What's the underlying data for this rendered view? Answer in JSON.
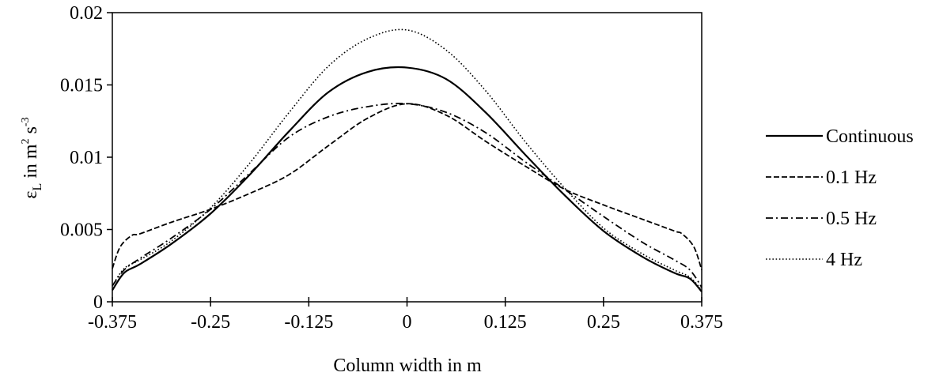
{
  "chart_data": {
    "type": "line",
    "title": "",
    "xlabel": "Column width in m",
    "ylabel": "εL in m² s⁻³",
    "ylabel_parts": {
      "symbol": "ε",
      "subscript": "L",
      "unit_prefix": " in m",
      "sup1": "2",
      "mid": " s",
      "sup2": "-3"
    },
    "xlim": [
      -0.375,
      0.375
    ],
    "ylim": [
      0,
      0.02
    ],
    "xticks": [
      -0.375,
      -0.25,
      -0.125,
      0,
      0.125,
      0.25,
      0.375
    ],
    "xtick_labels": [
      "-0.375",
      "-0.25",
      "-0.125",
      "0",
      "0.125",
      "0.25",
      "0.375"
    ],
    "yticks": [
      0,
      0.005,
      0.01,
      0.015,
      0.02
    ],
    "ytick_labels": [
      "0",
      "0.005",
      "0.01",
      "0.015",
      "0.02"
    ],
    "grid": false,
    "legend_position": "right",
    "series": [
      {
        "name": "Continuous",
        "style": "solid",
        "x": [
          -0.375,
          -0.36,
          -0.34,
          -0.3,
          -0.25,
          -0.2,
          -0.15,
          -0.1,
          -0.05,
          0,
          0.05,
          0.1,
          0.15,
          0.2,
          0.25,
          0.3,
          0.34,
          0.36,
          0.375
        ],
        "y": [
          0.0008,
          0.002,
          0.0026,
          0.004,
          0.0061,
          0.0088,
          0.0118,
          0.0145,
          0.0159,
          0.0162,
          0.0154,
          0.0131,
          0.0102,
          0.0074,
          0.0049,
          0.0031,
          0.002,
          0.0016,
          0.0007
        ]
      },
      {
        "name": "0.1 Hz",
        "style": "dashed",
        "x": [
          -0.375,
          -0.365,
          -0.35,
          -0.34,
          -0.3,
          -0.25,
          -0.2,
          -0.15,
          -0.1,
          -0.05,
          0,
          0.05,
          0.1,
          0.15,
          0.2,
          0.25,
          0.3,
          0.34,
          0.35,
          0.365,
          0.375
        ],
        "y": [
          0.0023,
          0.0038,
          0.0046,
          0.0047,
          0.0055,
          0.0064,
          0.0075,
          0.0088,
          0.0108,
          0.0127,
          0.0137,
          0.0129,
          0.0111,
          0.0094,
          0.0078,
          0.0067,
          0.0057,
          0.0049,
          0.0047,
          0.0038,
          0.0022
        ]
      },
      {
        "name": "0.5 Hz",
        "style": "dashdot",
        "x": [
          -0.375,
          -0.36,
          -0.34,
          -0.3,
          -0.25,
          -0.2,
          -0.15,
          -0.1,
          -0.05,
          0,
          0.05,
          0.1,
          0.15,
          0.2,
          0.25,
          0.3,
          0.34,
          0.36,
          0.375
        ],
        "y": [
          0.0011,
          0.0022,
          0.003,
          0.0044,
          0.0064,
          0.0089,
          0.0114,
          0.0128,
          0.0135,
          0.0137,
          0.0131,
          0.0117,
          0.0097,
          0.0078,
          0.0059,
          0.0041,
          0.0029,
          0.0022,
          0.001
        ]
      },
      {
        "name": "4 Hz",
        "style": "dotted",
        "x": [
          -0.375,
          -0.36,
          -0.34,
          -0.3,
          -0.25,
          -0.2,
          -0.15,
          -0.1,
          -0.05,
          0,
          0.05,
          0.1,
          0.15,
          0.2,
          0.25,
          0.3,
          0.34,
          0.36,
          0.375
        ],
        "y": [
          0.0011,
          0.0023,
          0.0029,
          0.0042,
          0.0065,
          0.0096,
          0.0131,
          0.0163,
          0.0182,
          0.0188,
          0.0174,
          0.0146,
          0.0111,
          0.0079,
          0.0051,
          0.0033,
          0.0022,
          0.0017,
          0.0008
        ]
      }
    ]
  }
}
